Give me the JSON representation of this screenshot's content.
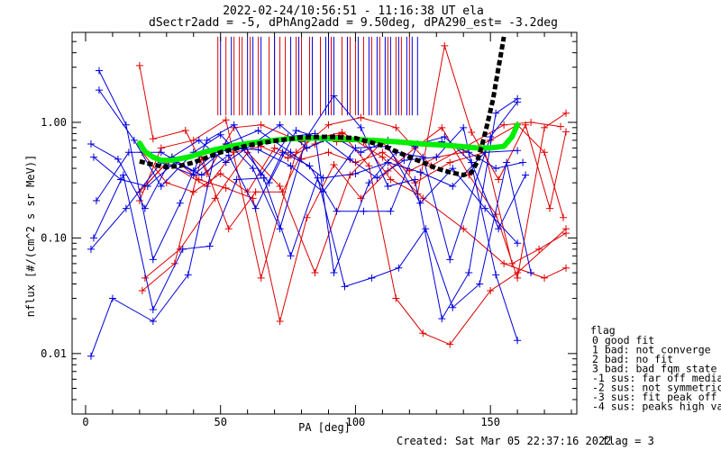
{
  "chart_data": {
    "type": "line",
    "title": "2022-02-24/10:56:51 - 11:16:38 UT ela",
    "subtitle": "dSectr2add = -5, dPhAng2add = 9.50deg, dPA290_est=  -3.2deg",
    "xlabel": "PA [deg]",
    "ylabel": "nflux [#/(cm^2 s sr MeV)]",
    "xlim": [
      -5,
      182
    ],
    "ylim": [
      0.003,
      6
    ],
    "y_scale": "log",
    "x_ticks": [
      "0",
      "50",
      "100",
      "150"
    ],
    "y_ticks": [
      {
        "v": 1.0,
        "label": "1.00"
      },
      {
        "v": 0.1,
        "label": "0.10"
      },
      {
        "v": 0.01,
        "label": "0.01"
      }
    ],
    "grid": false,
    "marker_lines": {
      "red_x": [
        49,
        52,
        55,
        57,
        58,
        61,
        64,
        68,
        70,
        72,
        74,
        78,
        80,
        83,
        87,
        91,
        95,
        98,
        100,
        103,
        106,
        109,
        112,
        115,
        117,
        120
      ],
      "blue_x": [
        50,
        54,
        60,
        62,
        65,
        70,
        76,
        79,
        84,
        89,
        90,
        92,
        97,
        101,
        105,
        108,
        111,
        113,
        116,
        119,
        121,
        123
      ],
      "y_top": 5.5,
      "y_bottom": 1.15
    },
    "series": [
      {
        "color": "#dd0000",
        "x": [
          20,
          25,
          37,
          45,
          55,
          65,
          80,
          95,
          110,
          125,
          140,
          155,
          170,
          178
        ],
        "y": [
          3.1,
          0.72,
          0.85,
          0.36,
          0.9,
          0.95,
          0.68,
          0.82,
          0.5,
          0.22,
          0.12,
          0.06,
          0.045,
          0.055
        ]
      },
      {
        "color": "#dd0000",
        "x": [
          20,
          30,
          45,
          55,
          65,
          75,
          85,
          95,
          105,
          115,
          125,
          135,
          150,
          160,
          178
        ],
        "y": [
          0.25,
          0.45,
          0.28,
          0.55,
          0.62,
          0.49,
          0.65,
          0.8,
          0.42,
          0.03,
          0.015,
          0.012,
          0.035,
          0.05,
          0.12
        ]
      },
      {
        "color": "#dd0000",
        "x": [
          20,
          28,
          40,
          52,
          65,
          78,
          90,
          102,
          115,
          128,
          140,
          155,
          165,
          176
        ],
        "y": [
          0.21,
          0.6,
          0.7,
          1.05,
          0.045,
          0.55,
          0.95,
          1.1,
          0.9,
          0.42,
          0.6,
          0.95,
          1.0,
          0.92
        ]
      },
      {
        "color": "#dd0000",
        "x": [
          22,
          35,
          48,
          60,
          72,
          85,
          98,
          110,
          122,
          135,
          148,
          158,
          168,
          178
        ],
        "y": [
          0.045,
          0.08,
          0.22,
          0.55,
          0.28,
          0.05,
          0.35,
          0.68,
          0.3,
          0.45,
          0.55,
          0.06,
          0.08,
          0.11
        ]
      },
      {
        "color": "#dd0000",
        "x": [
          21,
          33,
          43,
          53,
          63,
          73,
          83,
          93,
          103,
          113,
          123,
          133,
          143,
          153,
          163,
          172,
          178
        ],
        "y": [
          0.035,
          0.06,
          0.5,
          0.12,
          0.25,
          0.25,
          0.75,
          0.68,
          0.68,
          0.32,
          0.24,
          4.6,
          0.82,
          0.32,
          0.95,
          0.18,
          0.83
        ]
      },
      {
        "color": "#dd0000",
        "x": [
          22,
          32,
          42,
          52,
          62,
          72,
          82,
          92,
          102,
          112,
          122,
          132,
          142,
          152,
          160,
          170,
          178
        ],
        "y": [
          0.28,
          0.5,
          0.32,
          0.27,
          0.22,
          0.019,
          0.15,
          0.43,
          0.22,
          0.38,
          0.6,
          0.9,
          0.35,
          0.16,
          0.045,
          0.9,
          1.2
        ]
      },
      {
        "color": "#dd0000",
        "x": [
          21,
          30,
          40,
          50,
          60,
          70,
          80,
          90,
          100,
          110,
          120,
          130,
          140,
          150,
          160,
          170,
          177
        ],
        "y": [
          0.55,
          0.3,
          0.25,
          0.36,
          0.25,
          0.6,
          0.48,
          0.55,
          0.45,
          0.55,
          0.38,
          0.5,
          0.55,
          0.7,
          0.95,
          0.55,
          0.15
        ]
      },
      {
        "color": "#0000dd",
        "x": [
          5,
          15,
          25,
          35,
          45,
          55,
          65,
          75,
          85,
          92,
          105,
          115,
          125,
          135,
          150,
          160
        ],
        "y": [
          2.8,
          0.95,
          0.065,
          0.2,
          0.7,
          0.95,
          0.35,
          0.75,
          0.8,
          0.05,
          0.3,
          0.55,
          0.5,
          0.065,
          0.75,
          1.5
        ]
      },
      {
        "color": "#0000dd",
        "x": [
          5,
          18,
          28,
          40,
          50,
          62,
          72,
          82,
          92,
          102,
          112,
          122,
          132,
          142,
          152,
          160
        ],
        "y": [
          1.9,
          0.7,
          0.28,
          0.55,
          0.78,
          0.4,
          0.12,
          0.75,
          1.7,
          0.9,
          0.28,
          0.32,
          0.02,
          0.05,
          1.2,
          1.6
        ]
      },
      {
        "color": "#0000dd",
        "x": [
          2,
          10,
          25,
          38,
          48,
          58,
          68,
          78,
          88,
          98,
          108,
          118,
          130,
          140,
          152,
          160
        ],
        "y": [
          0.0095,
          0.03,
          0.019,
          0.048,
          0.55,
          0.6,
          0.3,
          0.85,
          0.72,
          0.48,
          0.33,
          0.47,
          0.5,
          0.9,
          0.048,
          0.013
        ]
      },
      {
        "color": "#0000dd",
        "x": [
          3,
          14,
          25,
          36,
          46,
          56,
          66,
          76,
          86,
          96,
          106,
          116,
          126,
          136,
          146,
          156,
          165
        ],
        "y": [
          0.1,
          0.35,
          0.024,
          0.08,
          0.085,
          0.32,
          0.33,
          0.07,
          0.33,
          0.038,
          0.045,
          0.055,
          0.12,
          0.025,
          0.04,
          0.45,
          0.05
        ]
      },
      {
        "color": "#0000dd",
        "x": [
          2,
          12,
          22,
          32,
          42,
          52,
          62,
          72,
          82,
          92,
          102,
          112,
          122,
          132,
          142,
          152,
          162
        ],
        "y": [
          0.65,
          0.48,
          0.18,
          0.5,
          0.7,
          0.45,
          0.65,
          0.95,
          0.6,
          0.75,
          0.55,
          0.7,
          0.62,
          0.68,
          0.55,
          0.4,
          0.45
        ]
      },
      {
        "color": "#0000dd",
        "x": [
          3,
          13,
          23,
          33,
          43,
          53,
          63,
          73,
          83,
          93,
          103,
          113,
          123,
          133,
          143,
          153,
          163
        ],
        "y": [
          0.5,
          0.32,
          0.28,
          0.45,
          0.35,
          0.52,
          0.18,
          0.55,
          0.42,
          0.17,
          0.17,
          0.17,
          0.65,
          0.75,
          0.45,
          0.12,
          0.35
        ]
      },
      {
        "color": "#0000dd",
        "x": [
          2,
          15,
          28,
          40,
          52,
          64,
          76,
          88,
          100,
          112,
          124,
          136,
          148,
          160
        ],
        "y": [
          0.08,
          0.18,
          0.45,
          0.35,
          0.6,
          0.58,
          0.42,
          0.25,
          0.6,
          0.62,
          0.2,
          0.4,
          0.18,
          0.09
        ]
      },
      {
        "color": "#0000dd",
        "x": [
          4,
          16,
          28,
          40,
          52,
          64,
          76,
          88,
          100,
          112,
          124,
          136,
          148,
          160
        ],
        "y": [
          0.21,
          0.55,
          0.55,
          0.38,
          0.65,
          0.85,
          0.55,
          0.33,
          0.36,
          0.45,
          0.37,
          0.28,
          0.55,
          0.57
        ]
      }
    ],
    "fit_black": {
      "color": "#000000",
      "x": [
        20,
        25,
        30,
        35,
        40,
        50,
        60,
        70,
        80,
        90,
        100,
        110,
        120,
        125,
        130,
        135,
        140,
        143,
        145,
        147,
        149,
        151,
        152,
        153,
        154,
        155
      ],
      "y": [
        0.46,
        0.43,
        0.41,
        0.42,
        0.45,
        0.55,
        0.63,
        0.69,
        0.74,
        0.75,
        0.73,
        0.63,
        0.5,
        0.45,
        0.4,
        0.37,
        0.35,
        0.37,
        0.45,
        0.65,
        1.0,
        1.6,
        2.2,
        3.0,
        4.0,
        5.5
      ]
    },
    "fit_green": {
      "color": "#00ee00",
      "x": [
        20,
        22,
        25,
        28,
        32,
        38,
        45,
        55,
        65,
        75,
        85,
        95,
        105,
        115,
        125,
        135,
        145,
        150,
        155,
        158,
        160
      ],
      "y": [
        0.66,
        0.56,
        0.5,
        0.47,
        0.47,
        0.5,
        0.56,
        0.63,
        0.68,
        0.72,
        0.73,
        0.72,
        0.7,
        0.68,
        0.65,
        0.63,
        0.6,
        0.6,
        0.62,
        0.75,
        0.95
      ]
    },
    "legend": {
      "title": "flag",
      "entries": [
        "0 good fit",
        "1 bad: not converge",
        "2 bad: no fit",
        "3 bad: bad fqm state",
        "-1 sus: far off median",
        "-2 sus: not symmetric",
        "-3 sus: fit peak off 90",
        "-4 sus: peaks high var"
      ]
    },
    "footer": {
      "created": "Created: Sat Mar 05 22:37:16 2022",
      "flag": "flag = 3"
    }
  }
}
